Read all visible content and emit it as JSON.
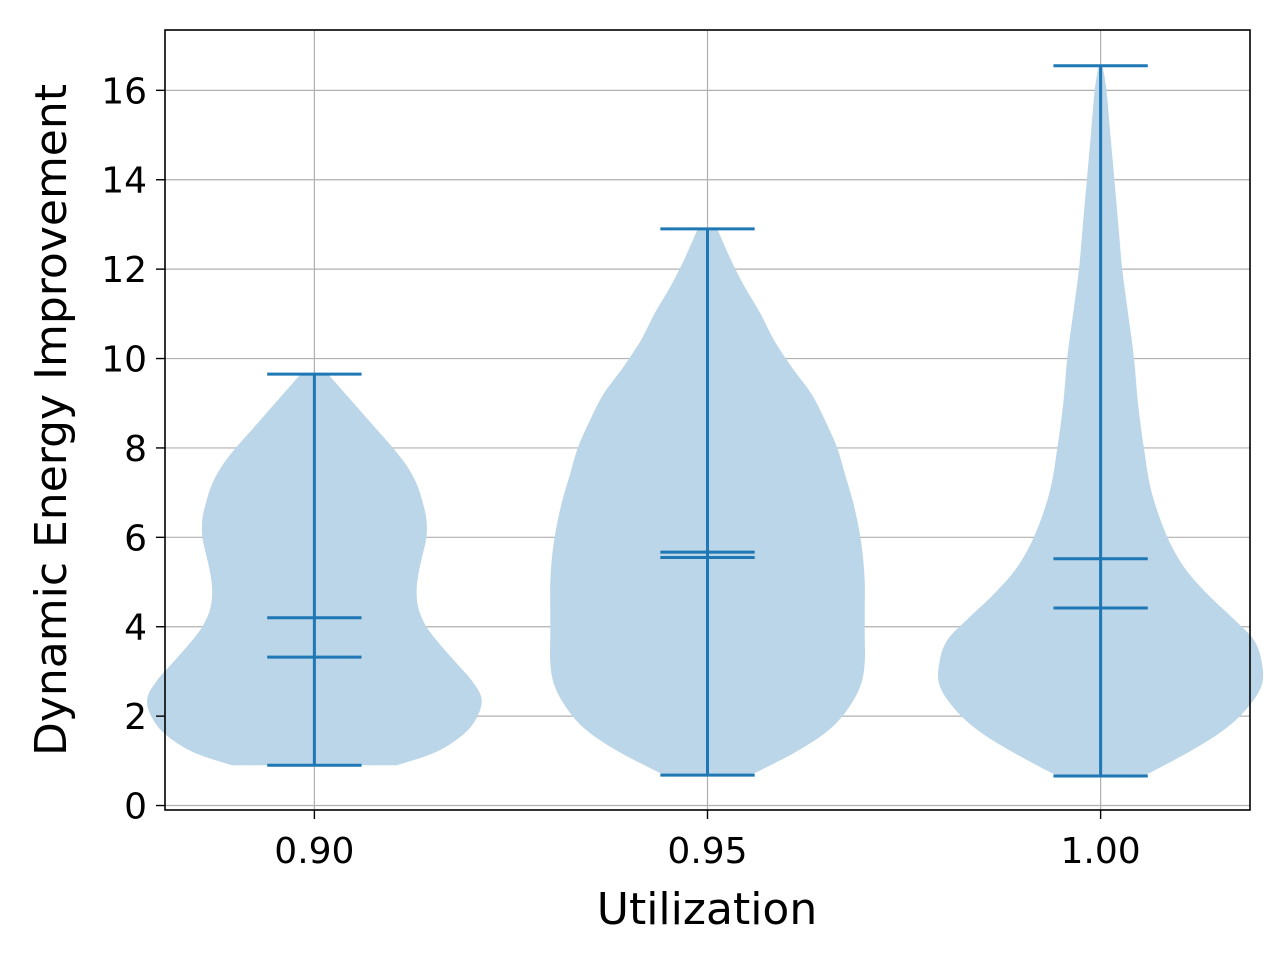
{
  "chart_data": {
    "type": "violin",
    "title": "",
    "xlabel": "Utilization",
    "ylabel": "Dynamic Energy Improvement",
    "categories": [
      "0.90",
      "0.95",
      "1.00"
    ],
    "x": [
      0.9,
      0.95,
      1.0
    ],
    "xlim": [
      0.881,
      1.019
    ],
    "ylim": [
      -0.1,
      17.35
    ],
    "yticks": [
      0,
      2,
      4,
      6,
      8,
      10,
      12,
      14,
      16
    ],
    "ytick_labels": [
      "0",
      "2",
      "4",
      "6",
      "8",
      "10",
      "12",
      "14",
      "16"
    ],
    "grid": true,
    "legend": "none",
    "violins": [
      {
        "category": "0.90",
        "min": 0.9,
        "max": 9.65,
        "mean": 4.2,
        "median": 3.32,
        "density": [
          [
            0.9,
            0.42
          ],
          [
            1.2,
            0.62
          ],
          [
            1.6,
            0.76
          ],
          [
            2.0,
            0.83
          ],
          [
            2.4,
            0.85
          ],
          [
            2.8,
            0.8
          ],
          [
            3.2,
            0.72
          ],
          [
            3.6,
            0.64
          ],
          [
            4.0,
            0.57
          ],
          [
            4.4,
            0.53
          ],
          [
            4.8,
            0.52
          ],
          [
            5.2,
            0.53
          ],
          [
            5.6,
            0.55
          ],
          [
            6.0,
            0.57
          ],
          [
            6.4,
            0.57
          ],
          [
            6.8,
            0.55
          ],
          [
            7.2,
            0.52
          ],
          [
            7.6,
            0.47
          ],
          [
            8.0,
            0.4
          ],
          [
            8.4,
            0.32
          ],
          [
            8.8,
            0.24
          ],
          [
            9.2,
            0.16
          ],
          [
            9.65,
            0.07
          ]
        ]
      },
      {
        "category": "0.95",
        "min": 0.68,
        "max": 12.9,
        "mean": 5.67,
        "median": 5.55,
        "density": [
          [
            0.68,
            0.22
          ],
          [
            1.2,
            0.45
          ],
          [
            1.7,
            0.62
          ],
          [
            2.2,
            0.72
          ],
          [
            2.7,
            0.78
          ],
          [
            3.2,
            0.8
          ],
          [
            3.8,
            0.8
          ],
          [
            4.4,
            0.8
          ],
          [
            5.0,
            0.8
          ],
          [
            5.6,
            0.79
          ],
          [
            6.2,
            0.77
          ],
          [
            6.8,
            0.74
          ],
          [
            7.4,
            0.7
          ],
          [
            8.0,
            0.66
          ],
          [
            8.6,
            0.6
          ],
          [
            9.2,
            0.53
          ],
          [
            9.8,
            0.43
          ],
          [
            10.4,
            0.34
          ],
          [
            11.0,
            0.27
          ],
          [
            11.6,
            0.19
          ],
          [
            12.2,
            0.12
          ],
          [
            12.9,
            0.05
          ]
        ]
      },
      {
        "category": "1.00",
        "min": 0.66,
        "max": 16.55,
        "mean": 5.52,
        "median": 4.42,
        "density": [
          [
            0.66,
            0.22
          ],
          [
            1.2,
            0.45
          ],
          [
            1.7,
            0.63
          ],
          [
            2.2,
            0.75
          ],
          [
            2.7,
            0.82
          ],
          [
            3.2,
            0.82
          ],
          [
            3.7,
            0.78
          ],
          [
            4.2,
            0.67
          ],
          [
            4.7,
            0.55
          ],
          [
            5.3,
            0.43
          ],
          [
            6.0,
            0.34
          ],
          [
            7.0,
            0.26
          ],
          [
            8.0,
            0.22
          ],
          [
            9.0,
            0.19
          ],
          [
            10.0,
            0.17
          ],
          [
            11.0,
            0.14
          ],
          [
            12.0,
            0.11
          ],
          [
            13.0,
            0.09
          ],
          [
            14.0,
            0.07
          ],
          [
            15.0,
            0.05
          ],
          [
            16.0,
            0.03
          ],
          [
            16.55,
            0.01
          ]
        ]
      }
    ],
    "colors": {
      "body": "#bbd6e8",
      "lines": "#1f77b4",
      "grid": "#b0b0b0",
      "frame": "#000000"
    }
  }
}
